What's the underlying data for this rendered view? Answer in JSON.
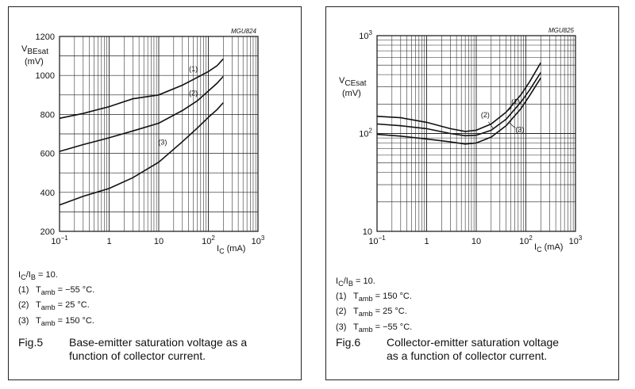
{
  "colors": {
    "ink": "#111111",
    "grid": "#222222",
    "panel_border": "#222222"
  },
  "chart_data": [
    {
      "type": "line",
      "figure_code": "MGU824",
      "title": "",
      "ylabel_main": "V",
      "ylabel_sub": "BEsat",
      "ylabel_unit": "(mV)",
      "xlabel_main": "I",
      "xlabel_sub": "C",
      "xlabel_unit": "(mA)",
      "xscale": "log",
      "xlim": [
        0.1,
        1000
      ],
      "yscale": "linear",
      "ylim": [
        200,
        1200
      ],
      "yticks": [
        200,
        400,
        600,
        800,
        1000,
        1200
      ],
      "xticks": [
        {
          "base": "10",
          "exp": "−1"
        },
        {
          "base": "1",
          "exp": ""
        },
        {
          "base": "10",
          "exp": ""
        },
        {
          "base": "10",
          "exp": "2"
        },
        {
          "base": "10",
          "exp": "3"
        }
      ],
      "grid": true,
      "series": [
        {
          "name": "(1)",
          "x": [
            0.1,
            0.3,
            1,
            3,
            10,
            30,
            60,
            100,
            150,
            200
          ],
          "y": [
            780,
            805,
            840,
            880,
            900,
            950,
            990,
            1020,
            1050,
            1085
          ]
        },
        {
          "name": "(2)",
          "x": [
            0.1,
            0.3,
            1,
            3,
            10,
            30,
            60,
            100,
            150,
            200
          ],
          "y": [
            610,
            645,
            680,
            715,
            755,
            820,
            870,
            920,
            960,
            995
          ]
        },
        {
          "name": "(3)",
          "x": [
            0.1,
            0.3,
            1,
            3,
            10,
            30,
            60,
            100,
            150,
            200
          ],
          "y": [
            335,
            380,
            420,
            475,
            555,
            660,
            730,
            785,
            825,
            860
          ]
        }
      ],
      "conditions": {
        "first": {
          "main": "I",
          "sub": "C",
          "sep": "/",
          "main2": "I",
          "sub2": "B",
          "tail": " = 10."
        }
      },
      "legend": [
        {
          "num": "(1)",
          "pre": "T",
          "sub": "amb",
          "val": " = −55 °C."
        },
        {
          "num": "(2)",
          "pre": "T",
          "sub": "amb",
          "val": " = 25 °C."
        },
        {
          "num": "(3)",
          "pre": "T",
          "sub": "amb",
          "val": " = 150 °C."
        }
      ],
      "caption_fig": "Fig.5",
      "caption_text": "Base-emitter saturation voltage as a function of collector current."
    },
    {
      "type": "line",
      "figure_code": "MGU825",
      "title": "",
      "ylabel_main": "V",
      "ylabel_sub": "CEsat",
      "ylabel_unit": "(mV)",
      "xlabel_main": "I",
      "xlabel_sub": "C",
      "xlabel_unit": "(mA)",
      "xscale": "log",
      "xlim": [
        0.1,
        1000
      ],
      "yscale": "log",
      "ylim": [
        10,
        1000
      ],
      "yticks": [
        {
          "base": "10",
          "exp": "3",
          "v": 1000
        },
        {
          "base": "10",
          "exp": "2",
          "v": 100
        },
        {
          "base": "10",
          "exp": "",
          "v": 10
        }
      ],
      "xticks": [
        {
          "base": "10",
          "exp": "−1"
        },
        {
          "base": "1",
          "exp": ""
        },
        {
          "base": "10",
          "exp": ""
        },
        {
          "base": "10",
          "exp": "2"
        },
        {
          "base": "10",
          "exp": "3"
        }
      ],
      "grid": true,
      "series": [
        {
          "name": "(1)",
          "x": [
            0.1,
            0.3,
            1,
            3,
            6,
            10,
            20,
            40,
            80,
            120,
            200
          ],
          "y": [
            150,
            145,
            130,
            112,
            105,
            108,
            125,
            165,
            250,
            340,
            530
          ]
        },
        {
          "name": "(2)",
          "x": [
            0.1,
            0.3,
            1,
            3,
            6,
            10,
            20,
            40,
            80,
            120,
            200
          ],
          "y": [
            125,
            120,
            112,
            100,
            95,
            96,
            108,
            140,
            210,
            280,
            420
          ]
        },
        {
          "name": "(3)",
          "x": [
            0.1,
            0.3,
            1,
            3,
            6,
            10,
            20,
            40,
            80,
            120,
            200
          ],
          "y": [
            98,
            94,
            88,
            82,
            78,
            80,
            92,
            120,
            180,
            245,
            370
          ]
        }
      ],
      "conditions": {
        "first": {
          "main": "I",
          "sub": "C",
          "sep": "/",
          "main2": "I",
          "sub2": "B",
          "tail": " = 10."
        }
      },
      "legend": [
        {
          "num": "(1)",
          "pre": "T",
          "sub": "amb",
          "val": " = 150 °C."
        },
        {
          "num": "(2)",
          "pre": "T",
          "sub": "amb",
          "val": " = 25 °C."
        },
        {
          "num": "(3)",
          "pre": "T",
          "sub": "amb",
          "val": " = −55 °C."
        }
      ],
      "caption_fig": "Fig.6",
      "caption_text": "Collector-emitter saturation voltage as a function of collector current."
    }
  ]
}
